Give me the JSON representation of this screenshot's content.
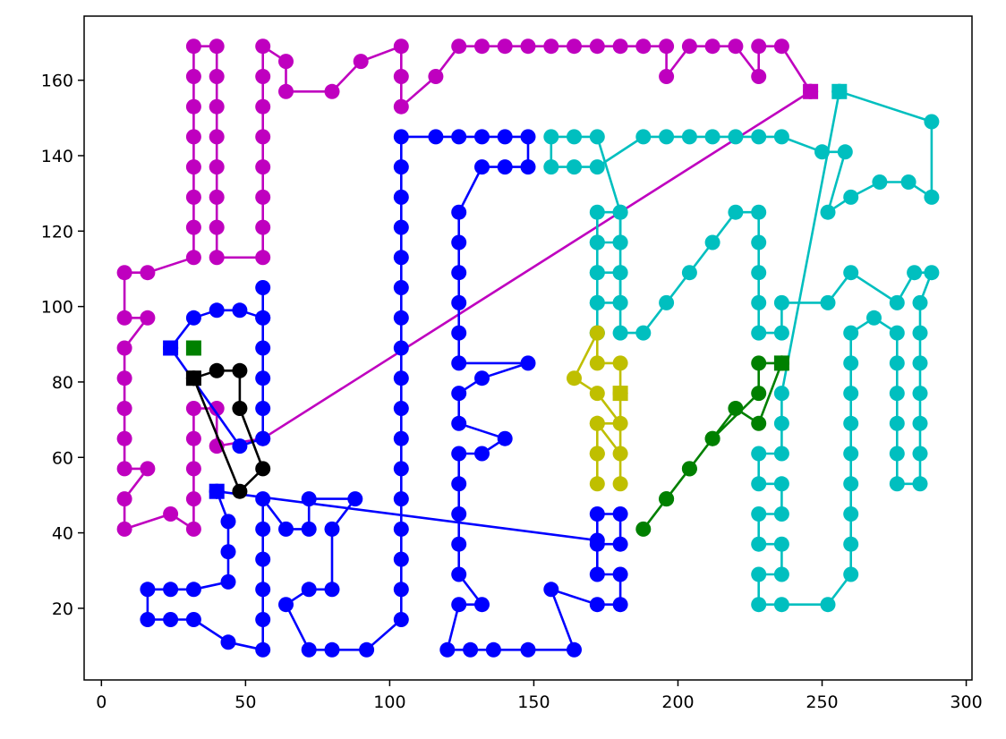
{
  "chart_data": {
    "type": "scatter",
    "title": "",
    "xlabel": "",
    "ylabel": "",
    "xlim": [
      -6,
      302
    ],
    "ylim": [
      1,
      177
    ],
    "xticks": [
      0,
      50,
      100,
      150,
      200,
      250,
      300
    ],
    "yticks": [
      20,
      40,
      60,
      80,
      100,
      120,
      140,
      160
    ],
    "grid": false,
    "legend": "none",
    "series": [
      {
        "color": "#bf00bf",
        "marker": "circle",
        "end_marker": "square",
        "points": [
          [
            246,
            157
          ],
          [
            56,
            65
          ],
          [
            40,
            63
          ],
          [
            40,
            73
          ],
          [
            32,
            73
          ],
          [
            32,
            65
          ],
          [
            32,
            57
          ],
          [
            32,
            49
          ],
          [
            32,
            41
          ],
          [
            24,
            45
          ],
          [
            8,
            41
          ],
          [
            8,
            49
          ],
          [
            16,
            57
          ],
          [
            8,
            57
          ],
          [
            8,
            65
          ],
          [
            8,
            73
          ],
          [
            8,
            81
          ],
          [
            8,
            89
          ],
          [
            16,
            97
          ],
          [
            8,
            97
          ],
          [
            8,
            109
          ],
          [
            16,
            109
          ],
          [
            32,
            113
          ],
          [
            32,
            121
          ],
          [
            32,
            129
          ],
          [
            32,
            137
          ],
          [
            32,
            145
          ],
          [
            32,
            153
          ],
          [
            32,
            161
          ],
          [
            32,
            169
          ],
          [
            40,
            169
          ],
          [
            40,
            161
          ],
          [
            40,
            153
          ],
          [
            40,
            145
          ],
          [
            40,
            137
          ],
          [
            40,
            129
          ],
          [
            40,
            121
          ],
          [
            40,
            113
          ],
          [
            56,
            113
          ],
          [
            56,
            121
          ],
          [
            56,
            129
          ],
          [
            56,
            137
          ],
          [
            56,
            145
          ],
          [
            56,
            153
          ],
          [
            56,
            161
          ],
          [
            56,
            169
          ],
          [
            64,
            165
          ],
          [
            64,
            157
          ],
          [
            80,
            157
          ],
          [
            90,
            165
          ],
          [
            104,
            169
          ],
          [
            104,
            161
          ],
          [
            104,
            153
          ],
          [
            116,
            161
          ],
          [
            124,
            169
          ],
          [
            132,
            169
          ],
          [
            140,
            169
          ],
          [
            148,
            169
          ],
          [
            156,
            169
          ],
          [
            164,
            169
          ],
          [
            172,
            169
          ],
          [
            180,
            169
          ],
          [
            188,
            169
          ],
          [
            196,
            169
          ],
          [
            196,
            161
          ],
          [
            204,
            169
          ],
          [
            212,
            169
          ],
          [
            220,
            169
          ],
          [
            228,
            161
          ],
          [
            228,
            169
          ],
          [
            236,
            169
          ],
          [
            246,
            157
          ]
        ]
      },
      {
        "color": "#0000ff",
        "marker": "circle",
        "end_marker": "square",
        "points": [
          [
            40,
            51
          ],
          [
            172,
            38
          ],
          [
            172,
            45
          ],
          [
            180,
            45
          ],
          [
            180,
            37
          ],
          [
            172,
            37
          ],
          [
            172,
            29
          ],
          [
            180,
            29
          ],
          [
            180,
            21
          ],
          [
            172,
            21
          ],
          [
            156,
            25
          ],
          [
            164,
            9
          ],
          [
            148,
            9
          ],
          [
            136,
            9
          ],
          [
            128,
            9
          ],
          [
            120,
            9
          ],
          [
            124,
            21
          ],
          [
            132,
            21
          ],
          [
            124,
            29
          ],
          [
            124,
            37
          ],
          [
            124,
            45
          ],
          [
            124,
            53
          ],
          [
            124,
            61
          ],
          [
            132,
            61
          ],
          [
            140,
            65
          ],
          [
            124,
            69
          ],
          [
            124,
            77
          ],
          [
            132,
            81
          ],
          [
            148,
            85
          ],
          [
            124,
            85
          ],
          [
            124,
            93
          ],
          [
            124,
            101
          ],
          [
            124,
            109
          ],
          [
            124,
            117
          ],
          [
            124,
            125
          ],
          [
            132,
            137
          ],
          [
            140,
            137
          ],
          [
            148,
            137
          ],
          [
            148,
            145
          ],
          [
            140,
            145
          ],
          [
            132,
            145
          ],
          [
            124,
            145
          ],
          [
            116,
            145
          ],
          [
            104,
            145
          ],
          [
            104,
            137
          ],
          [
            104,
            129
          ],
          [
            104,
            121
          ],
          [
            104,
            113
          ],
          [
            104,
            105
          ],
          [
            104,
            97
          ],
          [
            104,
            89
          ],
          [
            104,
            81
          ],
          [
            104,
            73
          ],
          [
            104,
            65
          ],
          [
            104,
            57
          ],
          [
            104,
            49
          ],
          [
            104,
            41
          ],
          [
            104,
            33
          ],
          [
            104,
            25
          ],
          [
            104,
            17
          ],
          [
            92,
            9
          ],
          [
            80,
            9
          ],
          [
            72,
            9
          ],
          [
            64,
            21
          ],
          [
            72,
            25
          ],
          [
            80,
            25
          ],
          [
            80,
            41
          ],
          [
            88,
            49
          ],
          [
            72,
            49
          ],
          [
            72,
            41
          ],
          [
            64,
            41
          ],
          [
            56,
            49
          ],
          [
            56,
            41
          ],
          [
            56,
            33
          ],
          [
            56,
            25
          ],
          [
            56,
            17
          ],
          [
            56,
            9
          ],
          [
            44,
            11
          ],
          [
            32,
            17
          ],
          [
            24,
            17
          ],
          [
            16,
            17
          ],
          [
            16,
            25
          ],
          [
            24,
            25
          ],
          [
            32,
            25
          ],
          [
            44,
            27
          ],
          [
            44,
            35
          ],
          [
            44,
            43
          ],
          [
            40,
            51
          ]
        ]
      },
      {
        "color": "#0000ff",
        "marker": "circle",
        "end_marker": "square",
        "points": [
          [
            24,
            89
          ],
          [
            32,
            97
          ],
          [
            40,
            99
          ],
          [
            48,
            99
          ],
          [
            56,
            97
          ],
          [
            56,
            105
          ],
          [
            56,
            97
          ],
          [
            56,
            89
          ],
          [
            56,
            81
          ],
          [
            56,
            73
          ],
          [
            56,
            65
          ],
          [
            48,
            63
          ],
          [
            24,
            89
          ]
        ]
      },
      {
        "color": "#00bfbf",
        "marker": "circle",
        "end_marker": "square",
        "points": [
          [
            256,
            157
          ],
          [
            288,
            149
          ],
          [
            288,
            129
          ],
          [
            280,
            133
          ],
          [
            270,
            133
          ],
          [
            260,
            129
          ],
          [
            252,
            125
          ],
          [
            258,
            141
          ],
          [
            250,
            141
          ],
          [
            236,
            145
          ],
          [
            228,
            145
          ],
          [
            220,
            145
          ],
          [
            212,
            145
          ],
          [
            204,
            145
          ],
          [
            196,
            145
          ],
          [
            188,
            145
          ],
          [
            172,
            137
          ],
          [
            164,
            137
          ],
          [
            156,
            137
          ],
          [
            156,
            145
          ],
          [
            164,
            145
          ],
          [
            172,
            145
          ],
          [
            180,
            125
          ],
          [
            180,
            117
          ],
          [
            180,
            109
          ],
          [
            180,
            101
          ],
          [
            180,
            93
          ],
          [
            188,
            93
          ],
          [
            196,
            101
          ],
          [
            204,
            109
          ],
          [
            212,
            117
          ],
          [
            220,
            125
          ],
          [
            228,
            125
          ],
          [
            228,
            117
          ],
          [
            228,
            109
          ],
          [
            228,
            101
          ],
          [
            228,
            93
          ],
          [
            236,
            93
          ],
          [
            236,
            101
          ],
          [
            252,
            101
          ],
          [
            260,
            109
          ],
          [
            276,
            101
          ],
          [
            282,
            109
          ],
          [
            288,
            109
          ],
          [
            284,
            101
          ],
          [
            284,
            93
          ],
          [
            284,
            85
          ],
          [
            284,
            77
          ],
          [
            284,
            69
          ],
          [
            284,
            61
          ],
          [
            284,
            53
          ],
          [
            276,
            53
          ],
          [
            276,
            61
          ],
          [
            276,
            69
          ],
          [
            276,
            77
          ],
          [
            276,
            85
          ],
          [
            276,
            93
          ],
          [
            268,
            97
          ],
          [
            260,
            93
          ],
          [
            260,
            85
          ],
          [
            260,
            77
          ],
          [
            260,
            69
          ],
          [
            260,
            61
          ],
          [
            260,
            53
          ],
          [
            260,
            45
          ],
          [
            260,
            37
          ],
          [
            260,
            29
          ],
          [
            252,
            21
          ],
          [
            236,
            21
          ],
          [
            228,
            21
          ],
          [
            228,
            29
          ],
          [
            236,
            29
          ],
          [
            236,
            37
          ],
          [
            228,
            37
          ],
          [
            228,
            45
          ],
          [
            236,
            45
          ],
          [
            236,
            53
          ],
          [
            228,
            53
          ],
          [
            228,
            61
          ],
          [
            236,
            61
          ],
          [
            236,
            69
          ],
          [
            236,
            77
          ],
          [
            256,
            157
          ]
        ]
      },
      {
        "color": "#00bfbf",
        "marker": "circle",
        "end_marker": "none",
        "points": [
          [
            172,
            93
          ],
          [
            172,
            101
          ],
          [
            172,
            109
          ],
          [
            172,
            117
          ],
          [
            172,
            125
          ],
          [
            180,
            125
          ],
          [
            180,
            117
          ],
          [
            172,
            117
          ],
          [
            172,
            109
          ],
          [
            180,
            109
          ],
          [
            180,
            101
          ],
          [
            172,
            101
          ],
          [
            172,
            93
          ]
        ]
      },
      {
        "color": "#bfbf00",
        "marker": "circle",
        "end_marker": "square",
        "points": [
          [
            180,
            77
          ],
          [
            180,
            85
          ],
          [
            172,
            85
          ],
          [
            172,
            93
          ],
          [
            164,
            81
          ],
          [
            172,
            77
          ],
          [
            180,
            69
          ],
          [
            172,
            69
          ],
          [
            172,
            61
          ],
          [
            172,
            53
          ],
          [
            172,
            61
          ],
          [
            172,
            69
          ],
          [
            180,
            61
          ],
          [
            180,
            53
          ],
          [
            180,
            77
          ]
        ]
      },
      {
        "color": "#008000",
        "marker": "circle",
        "end_marker": "square",
        "points": [
          [
            236,
            85
          ],
          [
            228,
            85
          ],
          [
            228,
            77
          ],
          [
            212,
            65
          ],
          [
            204,
            57
          ],
          [
            196,
            49
          ],
          [
            188,
            41
          ],
          [
            196,
            49
          ],
          [
            204,
            57
          ],
          [
            212,
            65
          ],
          [
            220,
            73
          ],
          [
            228,
            69
          ],
          [
            236,
            85
          ]
        ]
      },
      {
        "color": "#008000",
        "marker": "none",
        "end_marker": "square",
        "points": [
          [
            32,
            89
          ]
        ]
      },
      {
        "color": "#000000",
        "marker": "circle",
        "end_marker": "square",
        "points": [
          [
            32,
            81
          ],
          [
            40,
            83
          ],
          [
            48,
            83
          ],
          [
            48,
            73
          ],
          [
            56,
            57
          ],
          [
            48,
            51
          ],
          [
            32,
            81
          ]
        ]
      }
    ]
  }
}
